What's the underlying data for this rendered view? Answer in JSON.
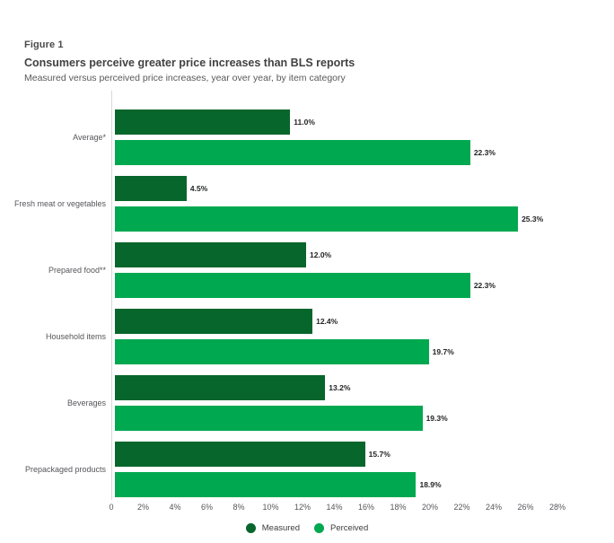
{
  "header": {
    "figure_label": "Figure 1",
    "title": "Consumers perceive greater price increases than BLS reports",
    "subtitle": "Measured versus perceived price increases, year over year, by item category"
  },
  "chart_data": {
    "type": "bar",
    "orientation": "horizontal",
    "title": "Consumers perceive greater price increases than BLS reports",
    "subtitle": "Measured versus perceived price increases, year over year, by item category",
    "categories": [
      "Average*",
      "Fresh meat or vegetables",
      "Prepared food**",
      "Household items",
      "Beverages",
      "Prepackaged products"
    ],
    "series": [
      {
        "name": "Measured",
        "color": "#07662b",
        "values": [
          11.0,
          4.5,
          12.0,
          12.4,
          13.2,
          15.7
        ],
        "labels": [
          "11.0%",
          "4.5%",
          "12.0%",
          "12.4%",
          "13.2%",
          "15.7%"
        ]
      },
      {
        "name": "Perceived",
        "color": "#00a850",
        "values": [
          22.3,
          25.3,
          22.3,
          19.7,
          19.3,
          18.9
        ],
        "labels": [
          "22.3%",
          "25.3%",
          "22.3%",
          "19.7%",
          "19.3%",
          "18.9%"
        ]
      }
    ],
    "xlim": [
      0,
      28
    ],
    "x_ticks": [
      "0",
      "2%",
      "4%",
      "6%",
      "8%",
      "10%",
      "12%",
      "14%",
      "16%",
      "18%",
      "20%",
      "22%",
      "24%",
      "26%",
      "28%"
    ],
    "grid": "off",
    "legend_position": "bottom",
    "legend": [
      {
        "label": "Measured",
        "color": "#07662b"
      },
      {
        "label": "Perceived",
        "color": "#00a850"
      }
    ]
  }
}
